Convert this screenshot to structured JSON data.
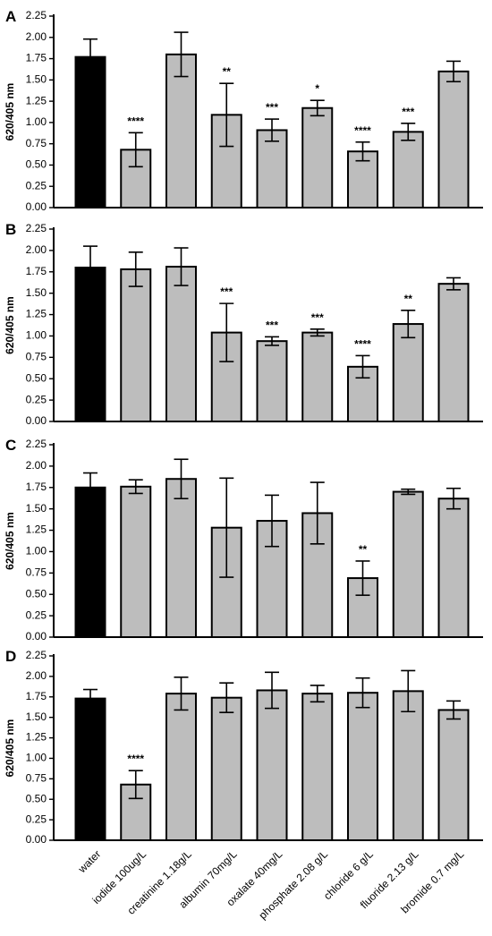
{
  "colors": {
    "control": "#000000",
    "treatment": "#bdbdbd",
    "outline": "#000000"
  },
  "categories": [
    "water",
    "iodide 100ug/L",
    "creatinine 1.18g/L",
    "albumin 70mg/L",
    "oxalate 40mg/L",
    "phosphate 2.08 g/L",
    "chloride 6 g/L",
    "fluoride 2.13 g/L",
    "bromide 0.7 mg/L"
  ],
  "chart_data": [
    {
      "type": "bar",
      "panel": "A",
      "ylabel": "620/405 nm",
      "ylim": [
        0,
        2.25
      ],
      "yticks": [
        "0.00",
        "0.25",
        "0.50",
        "0.75",
        "1.00",
        "1.25",
        "1.50",
        "1.75",
        "2.00",
        "2.25"
      ],
      "values": [
        1.77,
        0.68,
        1.8,
        1.09,
        0.91,
        1.17,
        0.66,
        0.89,
        1.6
      ],
      "errors": [
        0.21,
        0.2,
        0.26,
        0.37,
        0.13,
        0.09,
        0.11,
        0.1,
        0.12
      ],
      "significance": [
        "",
        "****",
        "",
        "**",
        "***",
        "*",
        "****",
        "***",
        ""
      ]
    },
    {
      "type": "bar",
      "panel": "B",
      "ylabel": "620/405 nm",
      "ylim": [
        0,
        2.25
      ],
      "yticks": [
        "0.00",
        "0.25",
        "0.50",
        "0.75",
        "1.00",
        "1.25",
        "1.50",
        "1.75",
        "2.00",
        "2.25"
      ],
      "values": [
        1.8,
        1.78,
        1.81,
        1.04,
        0.94,
        1.04,
        0.64,
        1.14,
        1.61
      ],
      "errors": [
        0.25,
        0.2,
        0.22,
        0.34,
        0.05,
        0.04,
        0.13,
        0.16,
        0.07
      ],
      "significance": [
        "",
        "",
        "",
        "***",
        "***",
        "***",
        "****",
        "**",
        ""
      ]
    },
    {
      "type": "bar",
      "panel": "C",
      "ylabel": "620/405 nm",
      "ylim": [
        0,
        2.25
      ],
      "yticks": [
        "0.00",
        "0.25",
        "0.50",
        "0.75",
        "1.00",
        "1.25",
        "1.50",
        "1.75",
        "2.00",
        "2.25"
      ],
      "values": [
        1.75,
        1.76,
        1.85,
        1.28,
        1.36,
        1.45,
        0.69,
        1.7,
        1.62
      ],
      "errors": [
        0.17,
        0.08,
        0.23,
        0.58,
        0.3,
        0.36,
        0.2,
        0.03,
        0.12
      ],
      "significance": [
        "",
        "",
        "",
        "",
        "",
        "",
        "**",
        "",
        ""
      ]
    },
    {
      "type": "bar",
      "panel": "D",
      "ylabel": "620/405 nm",
      "ylim": [
        0,
        2.25
      ],
      "yticks": [
        "0.00",
        "0.25",
        "0.50",
        "0.75",
        "1.00",
        "1.25",
        "1.50",
        "1.75",
        "2.00",
        "2.25"
      ],
      "values": [
        1.73,
        0.68,
        1.79,
        1.74,
        1.83,
        1.79,
        1.8,
        1.82,
        1.59
      ],
      "errors": [
        0.11,
        0.17,
        0.2,
        0.18,
        0.22,
        0.1,
        0.18,
        0.25,
        0.11
      ],
      "significance": [
        "",
        "****",
        "",
        "",
        "",
        "",
        "",
        "",
        ""
      ]
    }
  ]
}
